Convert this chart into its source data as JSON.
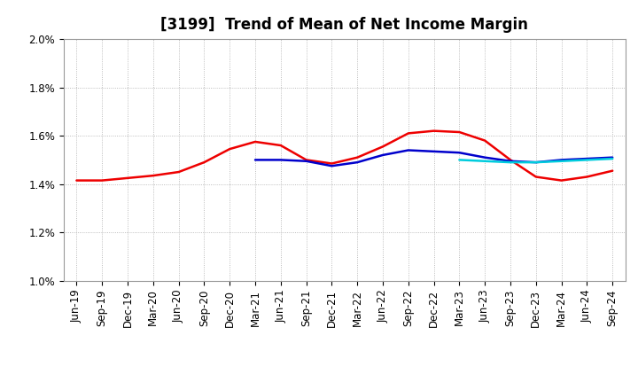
{
  "title": "[3199]  Trend of Mean of Net Income Margin",
  "ylim": [
    0.01,
    0.02
  ],
  "yticks": [
    0.01,
    0.012,
    0.014,
    0.016,
    0.018,
    0.02
  ],
  "ytick_labels": [
    "1.0%",
    "1.2%",
    "1.4%",
    "1.6%",
    "1.8%",
    "2.0%"
  ],
  "x_labels": [
    "Jun-19",
    "Sep-19",
    "Dec-19",
    "Mar-20",
    "Jun-20",
    "Sep-20",
    "Dec-20",
    "Mar-21",
    "Jun-21",
    "Sep-21",
    "Dec-21",
    "Mar-22",
    "Jun-22",
    "Sep-22",
    "Dec-22",
    "Mar-23",
    "Jun-23",
    "Sep-23",
    "Dec-23",
    "Mar-24",
    "Jun-24",
    "Sep-24"
  ],
  "series_3y": [
    0.01415,
    0.01415,
    0.01425,
    0.01435,
    0.0145,
    0.0149,
    0.01545,
    0.01575,
    0.0156,
    0.015,
    0.01485,
    0.0151,
    0.01555,
    0.0161,
    0.0162,
    0.01615,
    0.0158,
    0.015,
    0.0143,
    0.01415,
    0.0143,
    0.01455
  ],
  "series_5y": [
    null,
    null,
    null,
    null,
    null,
    null,
    null,
    0.015,
    0.015,
    0.01495,
    0.01475,
    0.0149,
    0.0152,
    0.0154,
    0.01535,
    0.0153,
    0.0151,
    0.01495,
    0.0149,
    0.015,
    0.01505,
    0.0151
  ],
  "series_7y": [
    null,
    null,
    null,
    null,
    null,
    null,
    null,
    null,
    null,
    null,
    null,
    null,
    null,
    null,
    null,
    0.015,
    0.01495,
    0.0149,
    0.0149,
    0.01495,
    0.015,
    0.01505
  ],
  "series_10y": [
    null,
    null,
    null,
    null,
    null,
    null,
    null,
    null,
    null,
    null,
    null,
    null,
    null,
    null,
    null,
    null,
    null,
    null,
    null,
    null,
    null,
    null
  ],
  "color_3y": "#EE0000",
  "color_5y": "#0000CC",
  "color_7y": "#00CCDD",
  "color_10y": "#008800",
  "background_color": "#FFFFFF",
  "grid_color": "#AAAAAA",
  "title_fontsize": 12,
  "tick_fontsize": 8.5,
  "legend_fontsize": 10,
  "line_width": 1.8
}
